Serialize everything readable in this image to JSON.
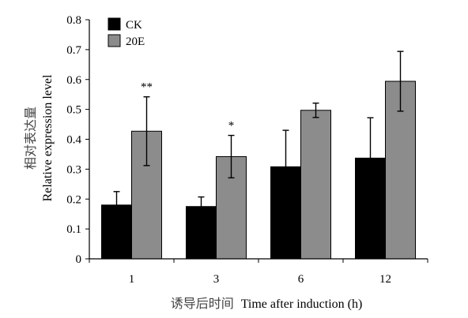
{
  "chart_data": {
    "type": "bar",
    "categories": [
      "1",
      "3",
      "6",
      "12"
    ],
    "series": [
      {
        "name": "CK",
        "color": "#000000",
        "values": [
          0.18,
          0.175,
          0.308,
          0.337
        ],
        "error": [
          0.045,
          0.032,
          0.122,
          0.135
        ],
        "error_direction": "up"
      },
      {
        "name": "20E",
        "color": "#8c8c8c",
        "values": [
          0.427,
          0.342,
          0.497,
          0.594
        ],
        "error": [
          0.115,
          0.071,
          0.024,
          0.1
        ],
        "error_direction": "both"
      }
    ],
    "annotations": [
      {
        "category": "1",
        "series": "20E",
        "text": "**"
      },
      {
        "category": "3",
        "series": "20E",
        "text": "*"
      }
    ],
    "ylim": [
      0,
      0.8
    ],
    "yticks": [
      "0",
      "0.1",
      "0.2",
      "0.3",
      "0.4",
      "0.5",
      "0.6",
      "0.7",
      "0.8"
    ],
    "xlabel_cn": "诱导后时间",
    "xlabel_en": "Time after induction (h)",
    "ylabel_cn": "相对表达量",
    "ylabel_en": "Relative expression level",
    "legend_position": "top-left",
    "grid": false
  }
}
